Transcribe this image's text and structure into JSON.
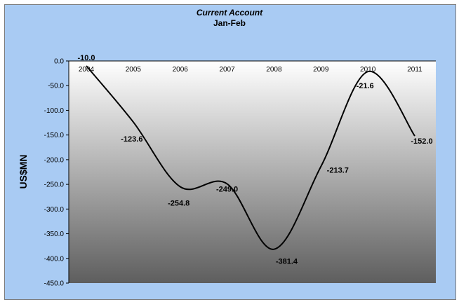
{
  "chart_data": {
    "type": "line",
    "title": "Current Account",
    "subtitle": "Jan-Feb",
    "xlabel": "",
    "ylabel": "US$MN",
    "categories": [
      "2004",
      "2005",
      "2006",
      "2007",
      "2008",
      "2009",
      "2010",
      "2011"
    ],
    "series": [
      {
        "values": [
          -10.0,
          -123.6,
          -254.8,
          -249.0,
          -381.4,
          -213.7,
          -21.6,
          -152.0
        ]
      }
    ],
    "data_labels": [
      "-10.0",
      "-123.6",
      "-254.8",
      "-249.0",
      "-381.4",
      "-213.7",
      "-21.6",
      "-152.0"
    ],
    "ylim": [
      -450,
      0
    ],
    "ytick_labels": [
      "0.0",
      "-50.0",
      "-100.0",
      "-150.0",
      "-200.0",
      "-250.0",
      "-300.0",
      "-350.0",
      "-400.0",
      "-450.0"
    ],
    "grid": false,
    "legend": "none",
    "colors": {
      "outer_background": "#a9cbf3",
      "plot_gradient_top": "#ffffff",
      "plot_gradient_bottom": "#5e5e5e",
      "line": "#000000"
    }
  }
}
